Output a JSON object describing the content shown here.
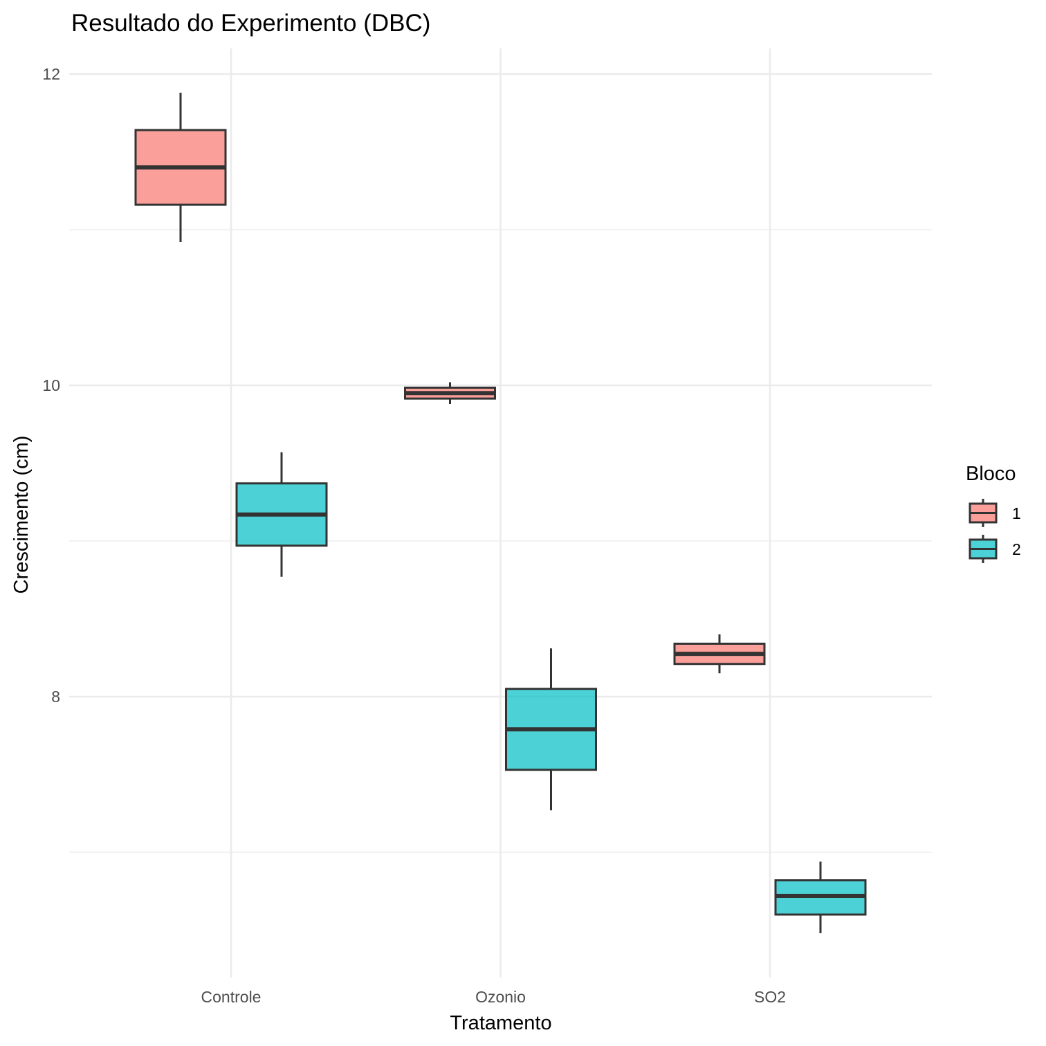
{
  "chart_data": {
    "type": "boxplot",
    "title": "Resultado do Experimento (DBC)",
    "xlabel": "Tratamento",
    "ylabel": "Crescimento (cm)",
    "categories": [
      "Controle",
      "Ozonio",
      "SO2"
    ],
    "ylim": [
      6.25,
      12.15
    ],
    "yticks": [
      8,
      10,
      12
    ],
    "yticks_labels": [
      "8",
      "10",
      "12"
    ],
    "grid": true,
    "legend": {
      "title": "Bloco",
      "position": "right",
      "entries": [
        {
          "label": "1",
          "color": "#F8766D"
        },
        {
          "label": "2",
          "color": "#00BFC4"
        }
      ]
    },
    "series": [
      {
        "name": "1",
        "color": "#F8766D",
        "boxes": [
          {
            "category": "Controle",
            "min": 10.92,
            "q1": 11.16,
            "median": 11.4,
            "q3": 11.64,
            "max": 11.88
          },
          {
            "category": "Ozonio",
            "min": 9.88,
            "q1": 9.915,
            "median": 9.95,
            "q3": 9.985,
            "max": 10.02
          },
          {
            "category": "SO2",
            "min": 8.15,
            "q1": 8.21,
            "median": 8.275,
            "q3": 8.34,
            "max": 8.4
          }
        ]
      },
      {
        "name": "2",
        "color": "#00BFC4",
        "boxes": [
          {
            "category": "Controle",
            "min": 8.77,
            "q1": 8.97,
            "median": 9.17,
            "q3": 9.37,
            "max": 9.57
          },
          {
            "category": "Ozonio",
            "min": 7.27,
            "q1": 7.53,
            "median": 7.79,
            "q3": 8.05,
            "max": 8.31
          },
          {
            "category": "SO2",
            "min": 6.48,
            "q1": 6.6,
            "median": 6.72,
            "q3": 6.82,
            "max": 6.94
          }
        ]
      }
    ]
  }
}
